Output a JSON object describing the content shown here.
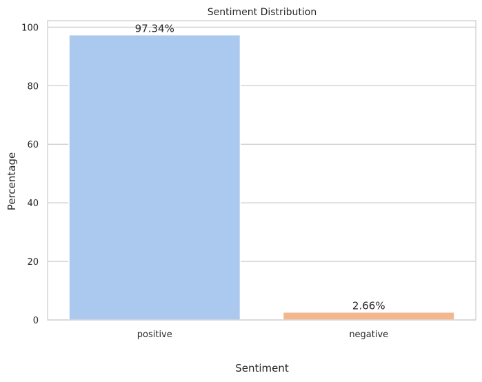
{
  "chart_data": {
    "type": "bar",
    "title": "Sentiment Distribution",
    "xlabel": "Sentiment",
    "ylabel": "Percentage",
    "categories": [
      "positive",
      "negative"
    ],
    "values": [
      97.34,
      2.66
    ],
    "data_labels": [
      "97.34%",
      "2.66%"
    ],
    "colors": [
      "#abc9ee",
      "#f3b68d"
    ],
    "ylim": [
      0,
      102.2
    ],
    "yticks": [
      0,
      20,
      40,
      60,
      80,
      100
    ],
    "grid": true,
    "legend": "none"
  }
}
